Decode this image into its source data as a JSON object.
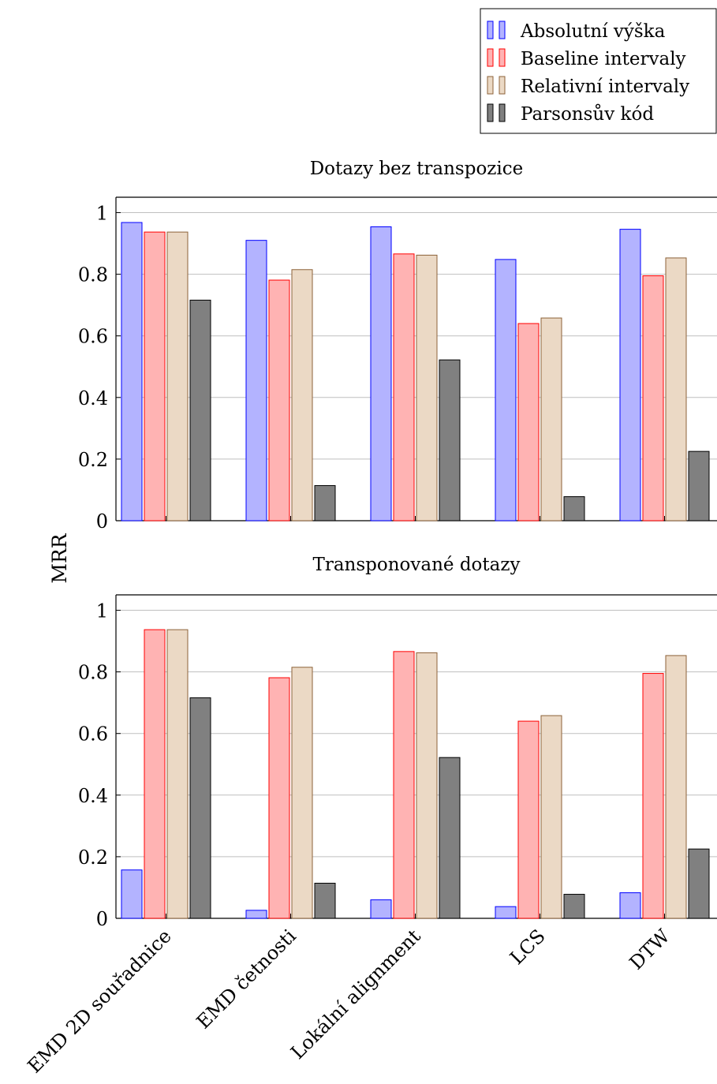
{
  "chart_data": {
    "type": "bar",
    "ylabel": "MRR",
    "ylim": [
      0,
      1.05
    ],
    "yticks": [
      "0",
      "0.2",
      "0.4",
      "0.6",
      "0.8",
      "1"
    ],
    "grid": "horizontal",
    "legend_position": "top-right",
    "categories": [
      "EMD 2D souřadnice",
      "EMD četnosti",
      "Lokální alignment",
      "LCS",
      "DTW"
    ],
    "series_styles": [
      {
        "name": "Absolutní výška",
        "fill": "#b3b3ff",
        "stroke": "#0000ff"
      },
      {
        "name": "Baseline intervaly",
        "fill": "#ffb3b3",
        "stroke": "#ff0000"
      },
      {
        "name": "Relativní intervaly",
        "fill": "#ebd9c5",
        "stroke": "#8c6239"
      },
      {
        "name": "Parsonsův kód",
        "fill": "#808080",
        "stroke": "#000000"
      }
    ],
    "panels": [
      {
        "title": "Dotazy bez transpozice",
        "series": [
          {
            "name": "Absolutní výška",
            "values": [
              0.968,
              0.91,
              0.954,
              0.848,
              0.946
            ]
          },
          {
            "name": "Baseline intervaly",
            "values": [
              0.937,
              0.781,
              0.866,
              0.64,
              0.795
            ]
          },
          {
            "name": "Relativní intervaly",
            "values": [
              0.937,
              0.815,
              0.862,
              0.658,
              0.853
            ]
          },
          {
            "name": "Parsonsův kód",
            "values": [
              0.716,
              0.114,
              0.522,
              0.078,
              0.225
            ]
          }
        ]
      },
      {
        "title": "Transponované dotazy",
        "series": [
          {
            "name": "Absolutní výška",
            "values": [
              0.157,
              0.026,
              0.06,
              0.038,
              0.083
            ]
          },
          {
            "name": "Baseline intervaly",
            "values": [
              0.937,
              0.781,
              0.866,
              0.64,
              0.795
            ]
          },
          {
            "name": "Relativní intervaly",
            "values": [
              0.937,
              0.815,
              0.862,
              0.658,
              0.853
            ]
          },
          {
            "name": "Parsonsův kód",
            "values": [
              0.716,
              0.114,
              0.522,
              0.078,
              0.225
            ]
          }
        ]
      }
    ]
  }
}
